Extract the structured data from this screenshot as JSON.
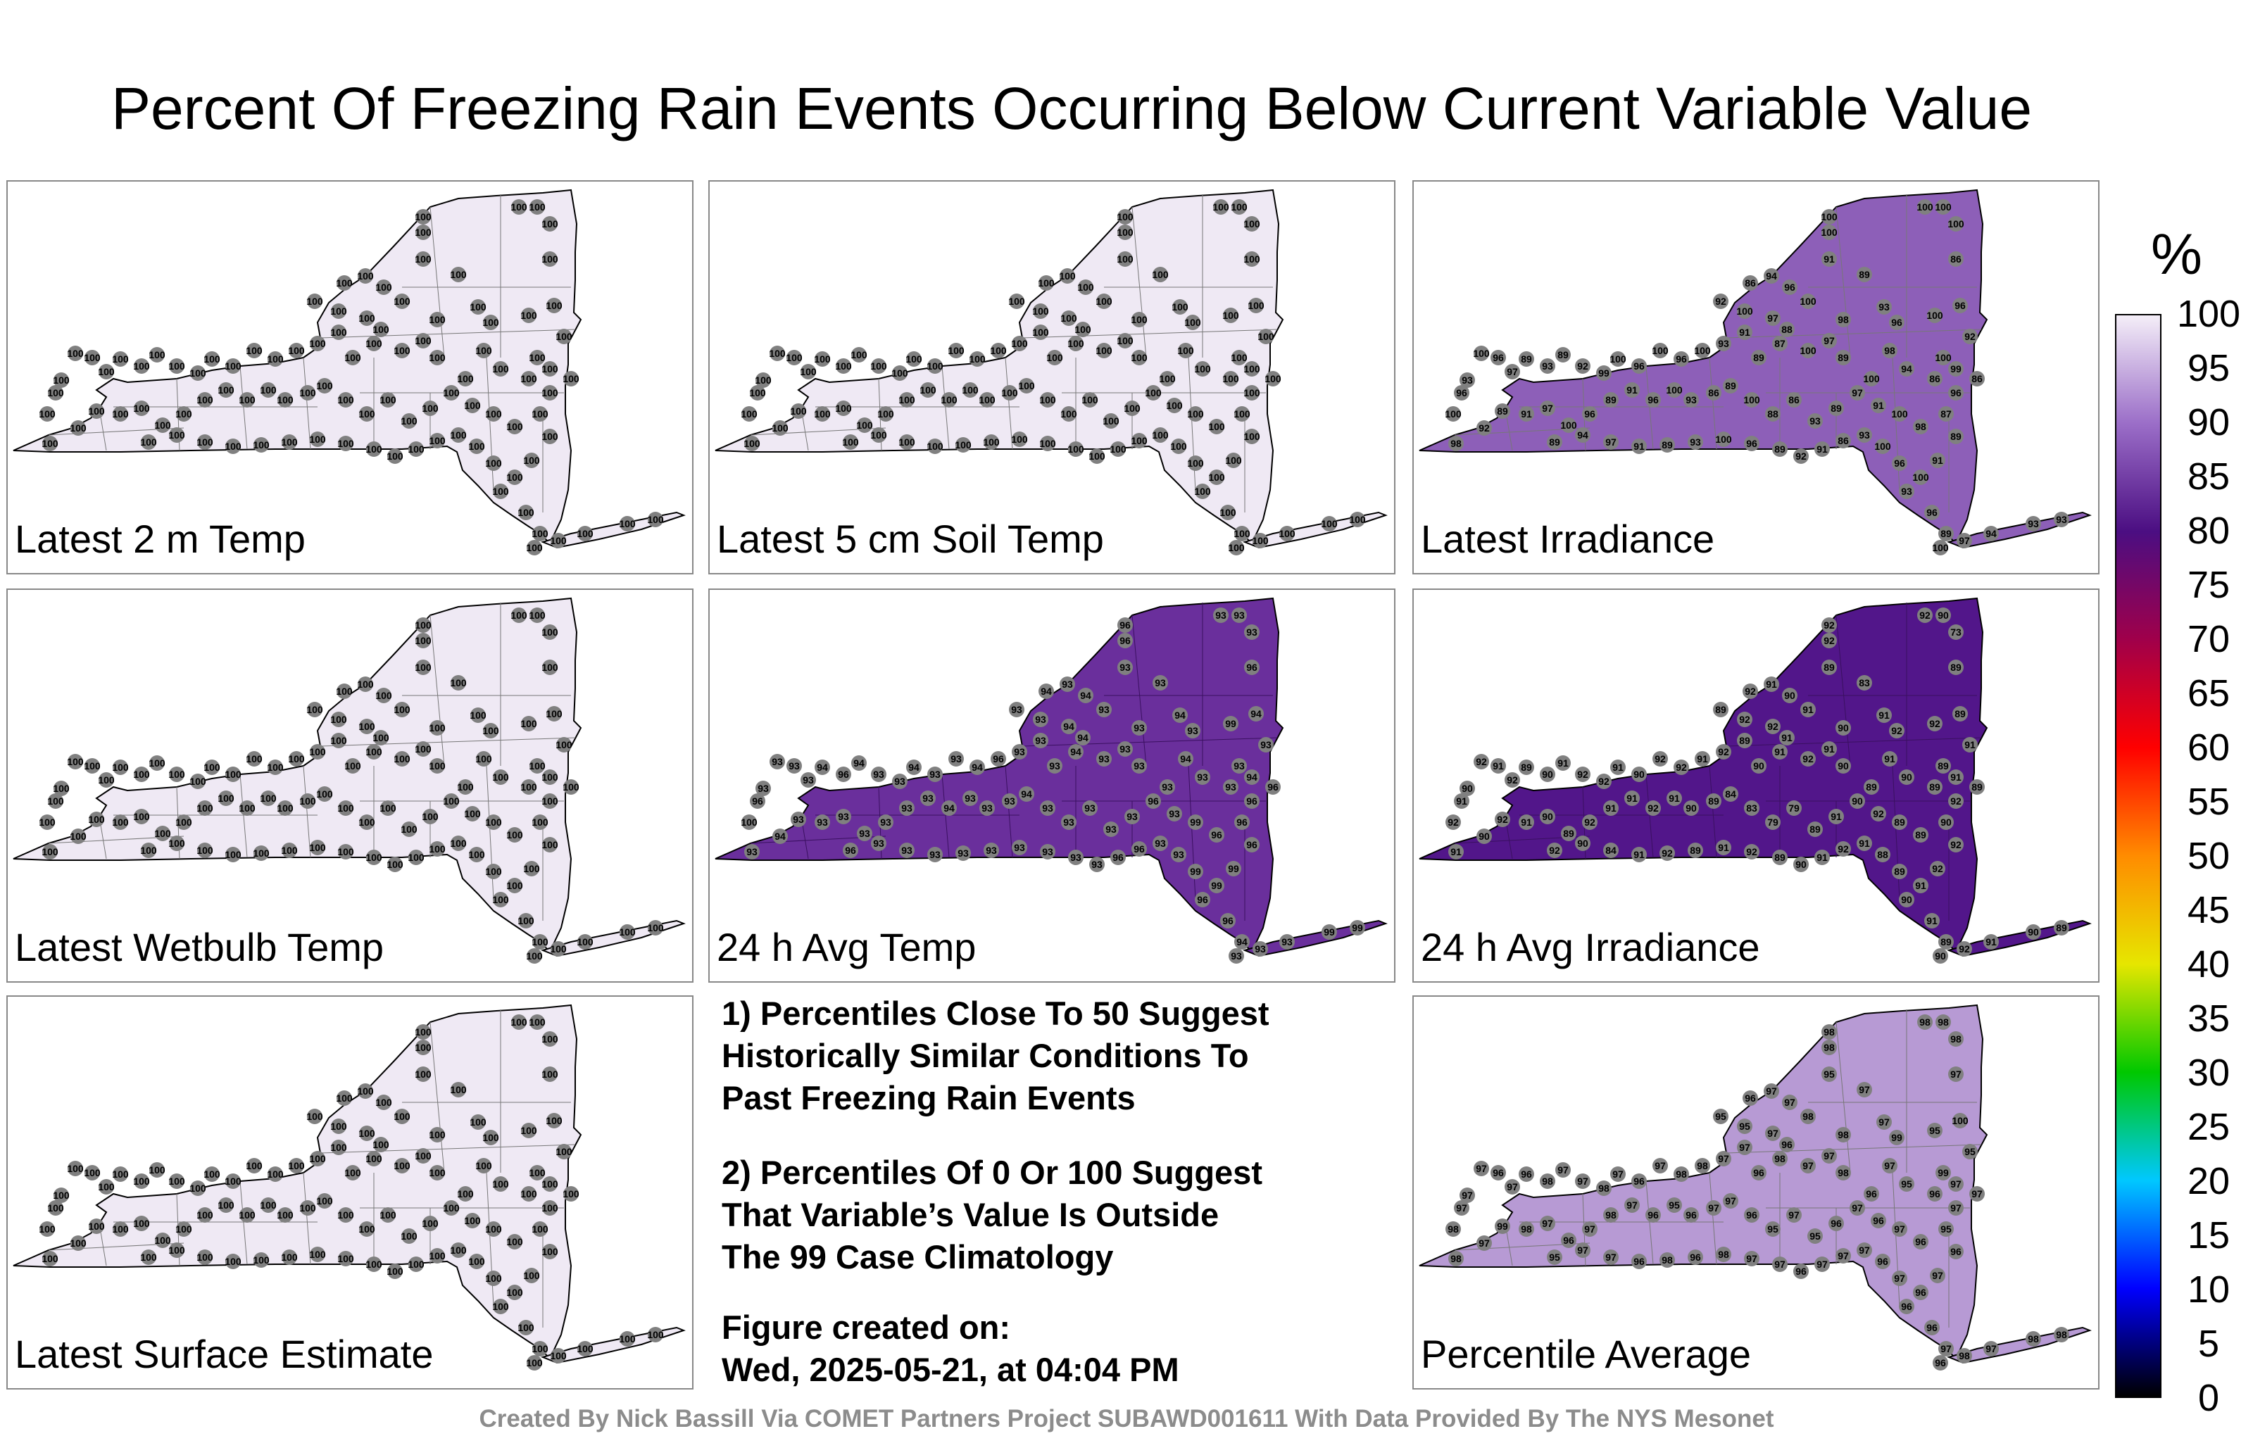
{
  "title": "Percent Of Freezing Rain Events Occurring Below Current Variable Value",
  "panels": [
    {
      "label": "Latest 2 m Temp",
      "fill": "#efe9f4",
      "value_labels": [
        "100"
      ]
    },
    {
      "label": "Latest 5 cm Soil Temp",
      "fill": "#efe9f4",
      "value_labels": [
        "100"
      ]
    },
    {
      "label": "Latest Irradiance",
      "fill": "#8d5fb8",
      "value_labels": [
        "100",
        "94",
        "86",
        "96",
        "91",
        "89",
        "92",
        "87",
        "97",
        "98",
        "93",
        "99",
        "88"
      ]
    },
    {
      "label": "Latest Wetbulb Temp",
      "fill": "#efe9f4",
      "value_labels": [
        "100"
      ]
    },
    {
      "label": "24 h Avg Temp",
      "fill": "#6a2f9c",
      "value_labels": [
        "96",
        "93",
        "94",
        "99",
        "100",
        "95"
      ]
    },
    {
      "label": "24 h Avg Irradiance",
      "fill": "#52168a",
      "value_labels": [
        "92",
        "90",
        "73",
        "89",
        "83",
        "91",
        "79",
        "84",
        "88"
      ]
    },
    {
      "label": "Latest Surface Estimate",
      "fill": "#efe9f4",
      "value_labels": [
        "100"
      ]
    },
    {
      "label": "Percentile Average",
      "fill": "#b79ad4",
      "value_labels": [
        "98",
        "97",
        "96",
        "95",
        "99",
        "100",
        "94"
      ]
    }
  ],
  "notes": {
    "note1": "1) Percentiles Close To 50 Suggest\nHistorically Similar Conditions To\nPast Freezing Rain Events",
    "note2": "2) Percentiles Of 0 Or 100 Suggest\nThat Variable’s Value Is Outside\nThe 99 Case Climatology",
    "created": "Figure created on:\nWed, 2025-05-21, at 04:04 PM"
  },
  "colorbar": {
    "unit": "%",
    "ticks": [
      "100",
      "95",
      "90",
      "85",
      "80",
      "75",
      "70",
      "65",
      "60",
      "55",
      "50",
      "45",
      "40",
      "35",
      "30",
      "25",
      "20",
      "15",
      "10",
      "5",
      "0"
    ],
    "stops": [
      "#000000",
      "#0000ff",
      "#00c8ff",
      "#00c800",
      "#e6e600",
      "#ff8c00",
      "#ff0000",
      "#a0004a",
      "#4b0e82",
      "#9b6ec8",
      "#f4eef8"
    ]
  },
  "footer": "Created By Nick Bassill Via COMET Partners Project SUBAWD001611 With Data Provided By The NYS Mesonet"
}
